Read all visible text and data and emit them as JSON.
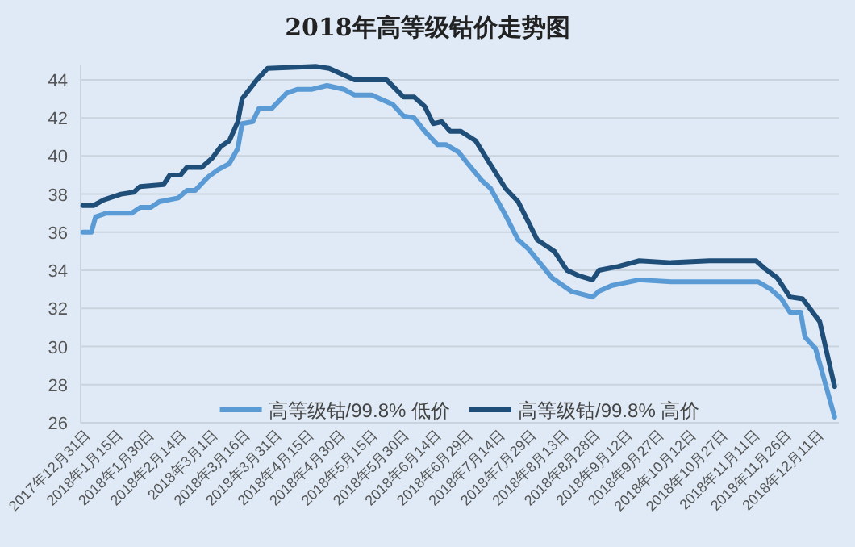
{
  "chart_data": {
    "type": "line",
    "title": "2018年高等级钴价走势图",
    "xlim": [
      "2017-12-26",
      "2018-12-18"
    ],
    "ylim": [
      26,
      44.8
    ],
    "yticks": [
      26,
      28,
      30,
      32,
      34,
      36,
      38,
      40,
      42,
      44
    ],
    "xticks": [
      {
        "value": "2017-12-31",
        "label": "2017年12月31日"
      },
      {
        "value": "2018-01-15",
        "label": "2018年1月15日"
      },
      {
        "value": "2018-01-30",
        "label": "2018年1月30日"
      },
      {
        "value": "2018-02-14",
        "label": "2018年2月14日"
      },
      {
        "value": "2018-03-01",
        "label": "2018年3月1日"
      },
      {
        "value": "2018-03-16",
        "label": "2018年3月16日"
      },
      {
        "value": "2018-03-31",
        "label": "2018年3月31日"
      },
      {
        "value": "2018-04-15",
        "label": "2018年4月15日"
      },
      {
        "value": "2018-04-30",
        "label": "2018年4月30日"
      },
      {
        "value": "2018-05-15",
        "label": "2018年5月15日"
      },
      {
        "value": "2018-05-30",
        "label": "2018年5月30日"
      },
      {
        "value": "2018-06-14",
        "label": "2018年6月14日"
      },
      {
        "value": "2018-06-29",
        "label": "2018年6月29日"
      },
      {
        "value": "2018-07-14",
        "label": "2018年7月14日"
      },
      {
        "value": "2018-07-29",
        "label": "2018年7月29日"
      },
      {
        "value": "2018-08-13",
        "label": "2018年8月13日"
      },
      {
        "value": "2018-08-28",
        "label": "2018年8月28日"
      },
      {
        "value": "2018-09-12",
        "label": "2018年9月12日"
      },
      {
        "value": "2018-09-27",
        "label": "2018年9月27日"
      },
      {
        "value": "2018-10-12",
        "label": "2018年10月12日"
      },
      {
        "value": "2018-10-27",
        "label": "2018年10月27日"
      },
      {
        "value": "2018-11-11",
        "label": "2018年11月11日"
      },
      {
        "value": "2018-11-26",
        "label": "2018年11月26日"
      },
      {
        "value": "2018-12-11",
        "label": "2018年12月11日"
      }
    ],
    "grid": "y",
    "legend": "bottom",
    "line_style": "solid",
    "marker": "none",
    "series": [
      {
        "name": "高等级钴/99.8% 低价",
        "color": "#5b9bd5",
        "x": [
          "2017-12-27",
          "2017-12-31",
          "2018-01-02",
          "2018-01-07",
          "2018-01-19",
          "2018-01-23",
          "2018-01-28",
          "2018-02-01",
          "2018-02-10",
          "2018-02-14",
          "2018-02-18",
          "2018-02-24",
          "2018-03-01",
          "2018-03-06",
          "2018-03-10",
          "2018-03-12",
          "2018-03-17",
          "2018-03-20",
          "2018-03-26",
          "2018-04-02",
          "2018-04-07",
          "2018-04-14",
          "2018-04-21",
          "2018-04-29",
          "2018-05-04",
          "2018-05-12",
          "2018-05-22",
          "2018-05-27",
          "2018-06-01",
          "2018-06-06",
          "2018-06-12",
          "2018-06-16",
          "2018-06-22",
          "2018-06-27",
          "2018-07-03",
          "2018-07-07",
          "2018-07-14",
          "2018-07-20",
          "2018-07-25",
          "2018-08-05",
          "2018-08-14",
          "2018-08-24",
          "2018-08-27",
          "2018-09-02",
          "2018-09-15",
          "2018-09-30",
          "2018-11-10",
          "2018-11-16",
          "2018-11-21",
          "2018-11-25",
          "2018-11-30",
          "2018-12-02",
          "2018-12-07",
          "2018-12-16"
        ],
        "values": [
          36.0,
          36.0,
          36.8,
          37.0,
          37.0,
          37.3,
          37.3,
          37.6,
          37.8,
          38.2,
          38.2,
          38.9,
          39.3,
          39.6,
          40.4,
          41.7,
          41.8,
          42.5,
          42.5,
          43.3,
          43.5,
          43.5,
          43.7,
          43.5,
          43.2,
          43.2,
          42.7,
          42.1,
          42.0,
          41.3,
          40.6,
          40.6,
          40.2,
          39.5,
          38.7,
          38.3,
          36.9,
          35.6,
          35.1,
          33.6,
          32.9,
          32.6,
          32.9,
          33.2,
          33.5,
          33.4,
          33.4,
          33.0,
          32.5,
          31.8,
          31.8,
          30.5,
          29.9,
          26.3
        ]
      },
      {
        "name": "高等级钴/99.8% 高价",
        "color": "#1f4e79",
        "x": [
          "2017-12-27",
          "2018-01-01",
          "2018-01-06",
          "2018-01-14",
          "2018-01-20",
          "2018-01-23",
          "2018-02-03",
          "2018-02-06",
          "2018-02-11",
          "2018-02-14",
          "2018-02-21",
          "2018-02-26",
          "2018-03-02",
          "2018-03-06",
          "2018-03-10",
          "2018-03-12",
          "2018-03-19",
          "2018-03-24",
          "2018-04-16",
          "2018-04-22",
          "2018-05-04",
          "2018-05-19",
          "2018-05-27",
          "2018-06-01",
          "2018-06-06",
          "2018-06-10",
          "2018-06-14",
          "2018-06-18",
          "2018-06-23",
          "2018-06-30",
          "2018-07-05",
          "2018-07-14",
          "2018-07-20",
          "2018-07-29",
          "2018-08-06",
          "2018-08-12",
          "2018-08-18",
          "2018-08-24",
          "2018-08-27",
          "2018-09-05",
          "2018-09-15",
          "2018-09-30",
          "2018-10-18",
          "2018-11-09",
          "2018-11-13",
          "2018-11-19",
          "2018-11-25",
          "2018-12-01",
          "2018-12-09",
          "2018-12-16"
        ],
        "values": [
          37.4,
          37.4,
          37.7,
          38.0,
          38.1,
          38.4,
          38.5,
          39.0,
          39.0,
          39.4,
          39.4,
          39.9,
          40.5,
          40.8,
          41.8,
          43.0,
          44.0,
          44.6,
          44.7,
          44.6,
          44.0,
          44.0,
          43.1,
          43.1,
          42.6,
          41.7,
          41.8,
          41.3,
          41.3,
          40.8,
          39.9,
          38.3,
          37.6,
          35.6,
          35.0,
          34.0,
          33.7,
          33.5,
          34.0,
          34.2,
          34.5,
          34.4,
          34.5,
          34.5,
          34.1,
          33.6,
          32.6,
          32.5,
          31.3,
          27.9
        ]
      }
    ]
  }
}
